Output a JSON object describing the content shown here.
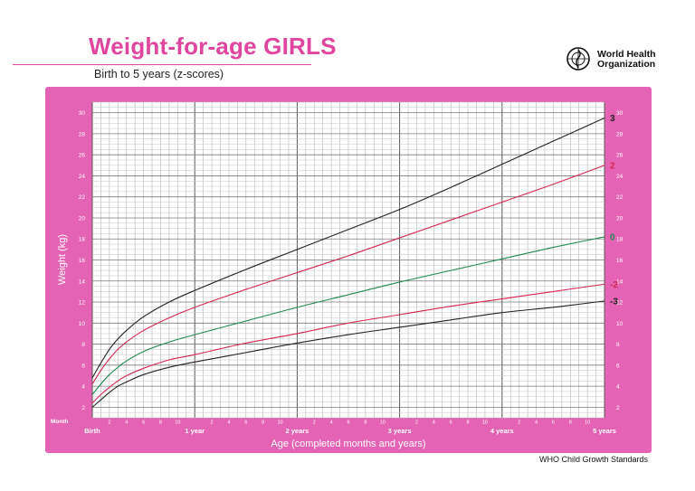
{
  "header": {
    "title": "Weight-for-age GIRLS",
    "subtitle": "Birth to 5 years (z-scores)"
  },
  "logo": {
    "name": "World Health Organization",
    "line1": "World Health",
    "line2": "Organization"
  },
  "footer": {
    "source": "WHO Child Growth Standards"
  },
  "colors": {
    "frame": "#e463b4",
    "title": "#e0459f",
    "line_z3": "#222222",
    "line_z2": "#d5264f",
    "line_z0": "#1d8a4e"
  },
  "chart_data": {
    "type": "line",
    "ylabel": "Weight (kg)",
    "xlabel": "Age (completed months and years)",
    "month_label": "Month",
    "x_unit": "months",
    "xlim": [
      0,
      60
    ],
    "ylim": [
      1,
      31
    ],
    "grid": true,
    "y_ticks": [
      2,
      4,
      6,
      8,
      10,
      12,
      14,
      16,
      18,
      20,
      22,
      24,
      26,
      28,
      30
    ],
    "month_ticks": [
      2,
      4,
      6,
      8,
      10
    ],
    "year_labels": [
      {
        "month": 0,
        "label": "Birth"
      },
      {
        "month": 12,
        "label": "1 year"
      },
      {
        "month": 24,
        "label": "2 years"
      },
      {
        "month": 36,
        "label": "3 years"
      },
      {
        "month": 48,
        "label": "4 years"
      },
      {
        "month": 60,
        "label": "5 years"
      }
    ],
    "x": [
      0,
      1,
      2,
      3,
      4,
      6,
      9,
      12,
      18,
      24,
      30,
      36,
      42,
      48,
      54,
      60
    ],
    "series": [
      {
        "name": "3",
        "colorKey": "line_z3",
        "values": [
          4.8,
          6.2,
          7.5,
          8.5,
          9.3,
          10.6,
          12.0,
          13.1,
          15.1,
          17.0,
          18.9,
          20.8,
          22.9,
          25.1,
          27.3,
          29.5
        ]
      },
      {
        "name": "2",
        "colorKey": "line_z2",
        "values": [
          4.2,
          5.5,
          6.6,
          7.5,
          8.2,
          9.3,
          10.5,
          11.5,
          13.2,
          14.8,
          16.4,
          18.1,
          19.8,
          21.5,
          23.2,
          25.0
        ]
      },
      {
        "name": "0",
        "colorKey": "line_z0",
        "values": [
          3.2,
          4.2,
          5.1,
          5.8,
          6.4,
          7.3,
          8.2,
          8.9,
          10.2,
          11.5,
          12.7,
          13.9,
          15.0,
          16.1,
          17.2,
          18.2
        ]
      },
      {
        "name": "-2",
        "colorKey": "line_z2",
        "values": [
          2.4,
          3.2,
          3.9,
          4.5,
          5.0,
          5.7,
          6.5,
          7.0,
          8.1,
          9.0,
          10.0,
          10.8,
          11.6,
          12.3,
          13.0,
          13.7
        ]
      },
      {
        "name": "-3",
        "colorKey": "line_z3",
        "values": [
          2.0,
          2.7,
          3.4,
          4.0,
          4.4,
          5.1,
          5.8,
          6.3,
          7.2,
          8.1,
          8.9,
          9.6,
          10.3,
          11.0,
          11.5,
          12.1
        ]
      }
    ]
  }
}
